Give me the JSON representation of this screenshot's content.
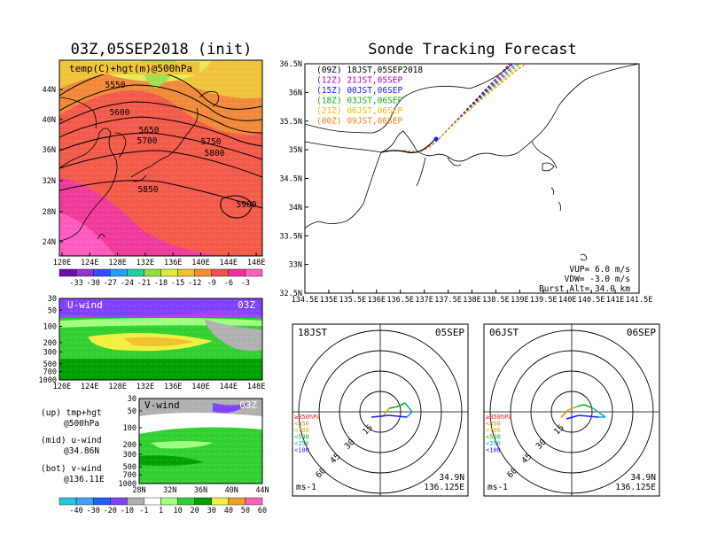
{
  "left": {
    "title": "03Z,05SEP2018 (init)",
    "map_label": "temp(C)+hgt(m)@500hPa",
    "contour_labels": [
      "5550",
      "5600",
      "5650",
      "5700",
      "5750",
      "5800",
      "5850",
      "5900"
    ],
    "lat_ticks": [
      "44N",
      "40N",
      "36N",
      "32N",
      "28N",
      "24N"
    ],
    "lon_ticks": [
      "120E",
      "124E",
      "128E",
      "132E",
      "136E",
      "140E",
      "144E",
      "148E"
    ],
    "temp_colorbar": [
      "-33",
      "-30",
      "-27",
      "-24",
      "-21",
      "-18",
      "-15",
      "-12",
      "-9",
      "-6",
      "-3"
    ],
    "uwind": {
      "label": "U-wind",
      "time": "03Z",
      "p_ticks": [
        "30",
        "50",
        "100",
        "200",
        "300",
        "500",
        "700",
        "1000"
      ],
      "lon_ticks": [
        "120E",
        "124E",
        "128E",
        "132E",
        "136E",
        "140E",
        "144E",
        "148E"
      ]
    },
    "vwind": {
      "label": "V-wind",
      "time": "03Z",
      "p_ticks": [
        "30",
        "50",
        "100",
        "200",
        "300",
        "500",
        "700",
        "1000"
      ],
      "lat_ticks": [
        "28N",
        "32N",
        "36N",
        "40N",
        "44N"
      ]
    },
    "legend": {
      "up": "(up) tmp+hgt",
      "up2": "@500hPa",
      "mid": "(mid) u-wind",
      "mid2": "@34.86N",
      "bot": "(bot) v-wind",
      "bot2": "@136.11E"
    },
    "wind_colorbar": [
      "-40",
      "-30",
      "-20",
      "-10",
      "-1",
      "1",
      "10",
      "20",
      "30",
      "40",
      "50",
      "60"
    ]
  },
  "right": {
    "title": "Sonde Tracking Forecast",
    "launches": [
      {
        "text": "(09Z)  18JST,05SEP2018",
        "color": "#000000"
      },
      {
        "text": "(12Z)  21JST,05SEP",
        "color": "#b000c0"
      },
      {
        "text": "(15Z)  00JST,06SEP",
        "color": "#1a1aff"
      },
      {
        "text": "(18Z)  03JST,06SEP",
        "color": "#10b010"
      },
      {
        "text": "(21Z)  06JST,06SEP",
        "color": "#e8c000"
      },
      {
        "text": "(00Z)  09JST,06SEP",
        "color": "#f08020"
      }
    ],
    "lat_ticks": [
      "36.5N",
      "36N",
      "35.5N",
      "35N",
      "34.5N",
      "34N",
      "33.5N",
      "33N",
      "32.5N"
    ],
    "lon_ticks": [
      "134.5E",
      "135E",
      "135.5E",
      "136E",
      "136.5E",
      "137E",
      "137.5E",
      "138E",
      "138.5E",
      "139E",
      "139.5E",
      "140E",
      "140.5E",
      "141E",
      "141.5E"
    ],
    "params": {
      "vup": "VUP=  6.0 m/s",
      "vdw": "VDW= -3.0 m/s",
      "burst": "Burst Alt= 34.0 km"
    }
  },
  "hodographs": [
    {
      "time": "18JST",
      "date": "05SEP",
      "lat": "34.9N",
      "lon": "136.125E",
      "unit": "ms-1",
      "rings": [
        "15",
        "30",
        "45",
        "60"
      ]
    },
    {
      "time": "06JST",
      "date": "06SEP",
      "lat": "34.9N",
      "lon": "136.125E",
      "unit": "ms-1",
      "rings": [
        "15",
        "30",
        "45",
        "60"
      ]
    }
  ],
  "hodo_legend": [
    {
      "text": "≥850hPa",
      "color": "#e02020"
    },
    {
      "text": "<850",
      "color": "#f08020"
    },
    {
      "text": "<700",
      "color": "#c8b400"
    },
    {
      "text": "<500",
      "color": "#10b010"
    },
    {
      "text": "<250",
      "color": "#10b0c0"
    },
    {
      "text": "<100",
      "color": "#1a1aff"
    }
  ],
  "colors": {
    "temp_scale": [
      "#6a0dad",
      "#9b30d0",
      "#3050ff",
      "#20a0ff",
      "#20d0a0",
      "#90e040",
      "#e0e840",
      "#f0c030",
      "#f09030",
      "#f05050",
      "#f030a0",
      "#ff60c0"
    ],
    "wind_scale": [
      "#20c8d8",
      "#40a0ff",
      "#2060ff",
      "#8040ff",
      "#b0b0b0",
      "#ffffff",
      "#a0ff80",
      "#30d030",
      "#00a000",
      "#f0f040",
      "#f0a020",
      "#ff60c0"
    ]
  }
}
